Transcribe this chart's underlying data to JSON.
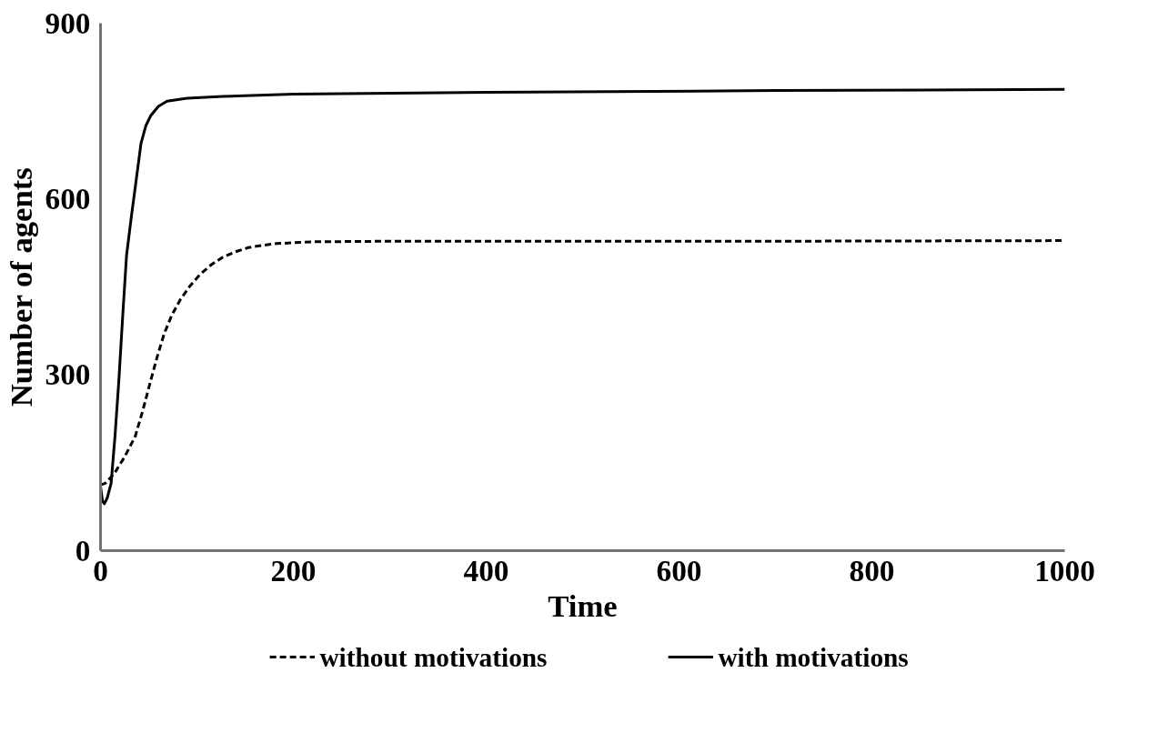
{
  "chart_data": {
    "type": "line",
    "xlabel": "Time",
    "ylabel": "Number of agents",
    "xlim": [
      0,
      1000
    ],
    "ylim": [
      0,
      900
    ],
    "xticks": [
      0,
      200,
      400,
      600,
      800,
      1000
    ],
    "yticks": [
      0,
      300,
      600,
      900
    ],
    "grid": false,
    "legend": "bottom",
    "series": [
      {
        "name": "without motivations",
        "color": "#000000",
        "line_style": "dashed",
        "x": [
          0,
          5,
          14,
          25,
          36,
          44,
          52,
          59,
          66,
          74,
          83,
          93,
          103,
          115,
          127,
          140,
          153,
          168,
          183,
          220,
          300,
          500,
          700,
          1000
        ],
        "values": [
          112,
          115,
          131,
          160,
          195,
          240,
          290,
          332,
          370,
          402,
          429,
          452,
          471,
          488,
          501,
          510,
          517,
          521,
          524,
          527,
          528,
          528,
          528,
          529
        ]
      },
      {
        "name": "with motivations",
        "color": "#000000",
        "line_style": "solid",
        "x": [
          0,
          2,
          4,
          7,
          11,
          15,
          19,
          23,
          27,
          32,
          36,
          42,
          47,
          52,
          60,
          69,
          90,
          127,
          200,
          400,
          700,
          1000
        ],
        "values": [
          110,
          85,
          80,
          90,
          115,
          195,
          290,
          400,
          504,
          570,
          620,
          695,
          725,
          742,
          758,
          767,
          772,
          775,
          779,
          782,
          785,
          787
        ]
      }
    ]
  }
}
